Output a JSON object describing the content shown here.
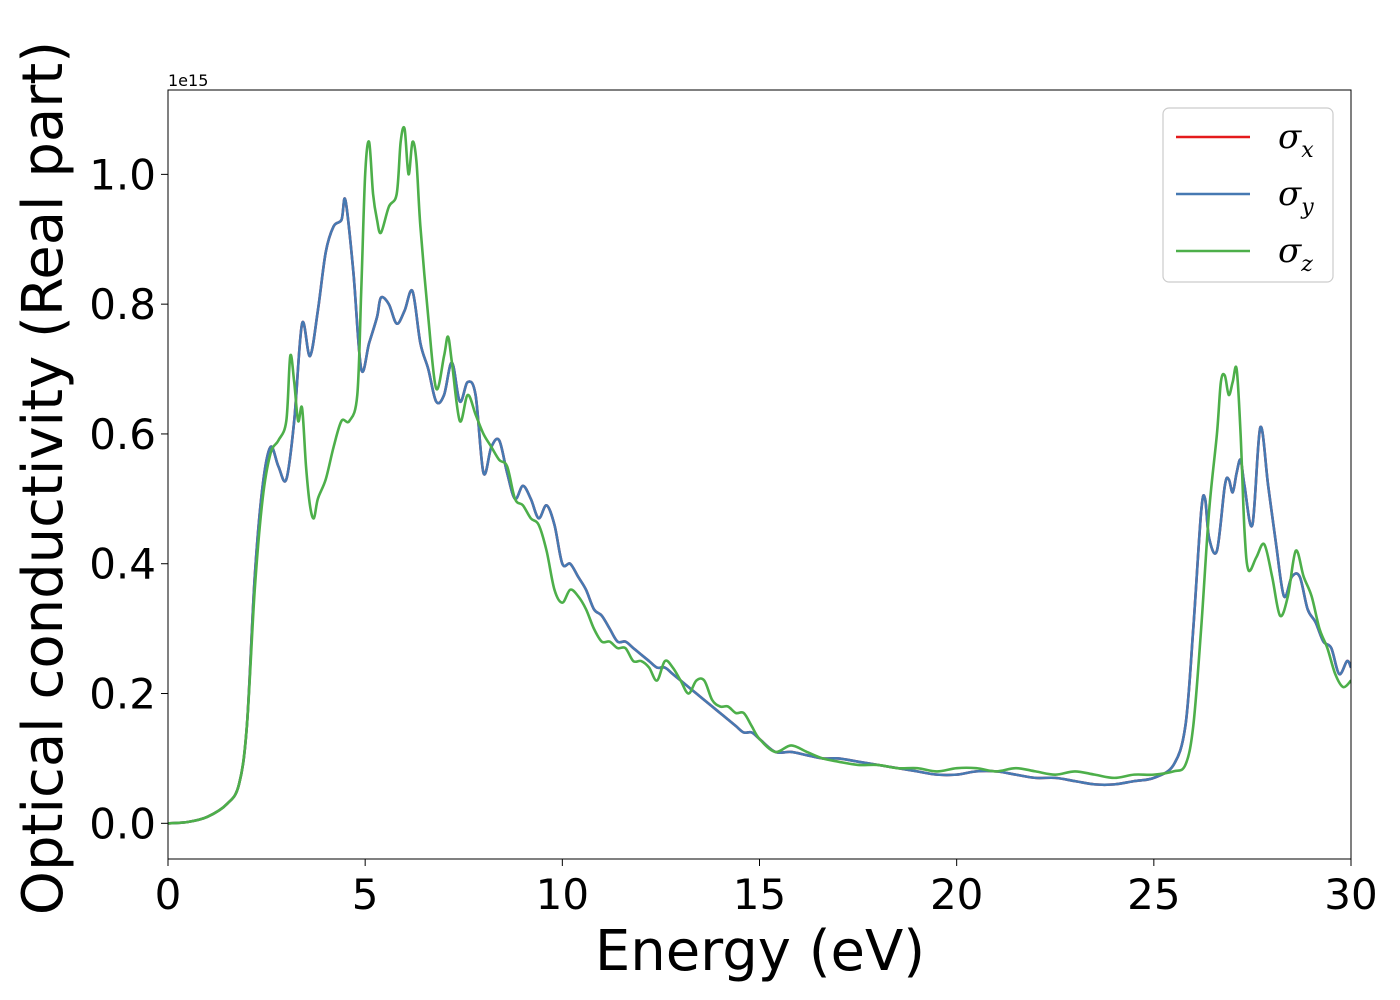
{
  "chart_data": {
    "type": "line",
    "title": "",
    "xlabel": "Energy (eV)",
    "ylabel": "Optical conductivity (Real part)",
    "y_offset_label": "1e15",
    "xlim": [
      0,
      30
    ],
    "ylim": [
      -0.055,
      1.13
    ],
    "xticks": [
      0,
      5,
      10,
      15,
      20,
      25,
      30
    ],
    "xtick_labels": [
      "0",
      "5",
      "10",
      "15",
      "20",
      "25",
      "30"
    ],
    "yticks": [
      0.0,
      0.2,
      0.4,
      0.6,
      0.8,
      1.0
    ],
    "ytick_labels": [
      "0.0",
      "0.2",
      "0.4",
      "0.6",
      "0.8",
      "1.0"
    ],
    "grid": false,
    "legend_position": "top-right",
    "series": [
      {
        "name": "σx",
        "legend_base": "σ",
        "legend_sub": "x",
        "color": "#e41a1c",
        "x": [
          0,
          0.5,
          1,
          1.5,
          1.8,
          2.0,
          2.2,
          2.4,
          2.6,
          2.8,
          3.0,
          3.2,
          3.4,
          3.6,
          3.8,
          4.0,
          4.2,
          4.4,
          4.5,
          4.7,
          4.9,
          5.1,
          5.3,
          5.4,
          5.6,
          5.8,
          6.0,
          6.2,
          6.4,
          6.6,
          6.8,
          7.0,
          7.2,
          7.4,
          7.6,
          7.8,
          8.0,
          8.2,
          8.4,
          8.6,
          8.8,
          9.0,
          9.2,
          9.4,
          9.6,
          9.8,
          10.0,
          10.2,
          10.4,
          10.6,
          10.8,
          11.0,
          11.2,
          11.4,
          11.6,
          11.8,
          12.0,
          12.2,
          12.4,
          12.6,
          12.8,
          13.0,
          13.4,
          13.8,
          14.0,
          14.2,
          14.4,
          14.6,
          14.8,
          15.0,
          15.4,
          15.8,
          16.2,
          16.6,
          17.0,
          17.5,
          18.0,
          18.5,
          19.0,
          19.5,
          20.0,
          20.5,
          21.0,
          21.5,
          22.0,
          22.5,
          23.0,
          23.5,
          24.0,
          24.5,
          25.0,
          25.5,
          25.8,
          26.0,
          26.2,
          26.3,
          26.4,
          26.6,
          26.8,
          26.9,
          27.0,
          27.1,
          27.2,
          27.3,
          27.5,
          27.7,
          27.9,
          28.1,
          28.3,
          28.5,
          28.7,
          28.9,
          29.1,
          29.3,
          29.5,
          29.7,
          29.9,
          30.0
        ],
        "y": [
          0.0,
          0.002,
          0.01,
          0.03,
          0.06,
          0.15,
          0.38,
          0.52,
          0.58,
          0.55,
          0.53,
          0.62,
          0.77,
          0.72,
          0.79,
          0.88,
          0.92,
          0.93,
          0.96,
          0.85,
          0.7,
          0.74,
          0.78,
          0.81,
          0.8,
          0.77,
          0.79,
          0.82,
          0.74,
          0.7,
          0.65,
          0.66,
          0.71,
          0.65,
          0.68,
          0.66,
          0.54,
          0.58,
          0.59,
          0.54,
          0.5,
          0.52,
          0.5,
          0.47,
          0.49,
          0.46,
          0.4,
          0.4,
          0.38,
          0.36,
          0.33,
          0.32,
          0.3,
          0.28,
          0.28,
          0.27,
          0.26,
          0.25,
          0.24,
          0.24,
          0.23,
          0.22,
          0.2,
          0.18,
          0.17,
          0.16,
          0.15,
          0.14,
          0.14,
          0.13,
          0.11,
          0.11,
          0.105,
          0.1,
          0.1,
          0.095,
          0.09,
          0.085,
          0.08,
          0.075,
          0.075,
          0.08,
          0.08,
          0.075,
          0.07,
          0.07,
          0.065,
          0.06,
          0.06,
          0.065,
          0.07,
          0.09,
          0.15,
          0.3,
          0.48,
          0.5,
          0.44,
          0.42,
          0.52,
          0.53,
          0.51,
          0.54,
          0.56,
          0.52,
          0.46,
          0.61,
          0.52,
          0.43,
          0.35,
          0.38,
          0.38,
          0.33,
          0.31,
          0.28,
          0.27,
          0.23,
          0.25,
          0.24
        ],
        "visible_note": "overlaps σy"
      },
      {
        "name": "σy",
        "legend_base": "σ",
        "legend_sub": "y",
        "color": "#4679b2",
        "x": [
          0,
          0.5,
          1,
          1.5,
          1.8,
          2.0,
          2.2,
          2.4,
          2.6,
          2.8,
          3.0,
          3.2,
          3.4,
          3.6,
          3.8,
          4.0,
          4.2,
          4.4,
          4.5,
          4.7,
          4.9,
          5.1,
          5.3,
          5.4,
          5.6,
          5.8,
          6.0,
          6.2,
          6.4,
          6.6,
          6.8,
          7.0,
          7.2,
          7.4,
          7.6,
          7.8,
          8.0,
          8.2,
          8.4,
          8.6,
          8.8,
          9.0,
          9.2,
          9.4,
          9.6,
          9.8,
          10.0,
          10.2,
          10.4,
          10.6,
          10.8,
          11.0,
          11.2,
          11.4,
          11.6,
          11.8,
          12.0,
          12.2,
          12.4,
          12.6,
          12.8,
          13.0,
          13.4,
          13.8,
          14.0,
          14.2,
          14.4,
          14.6,
          14.8,
          15.0,
          15.4,
          15.8,
          16.2,
          16.6,
          17.0,
          17.5,
          18.0,
          18.5,
          19.0,
          19.5,
          20.0,
          20.5,
          21.0,
          21.5,
          22.0,
          22.5,
          23.0,
          23.5,
          24.0,
          24.5,
          25.0,
          25.5,
          25.8,
          26.0,
          26.2,
          26.3,
          26.4,
          26.6,
          26.8,
          26.9,
          27.0,
          27.1,
          27.2,
          27.3,
          27.5,
          27.7,
          27.9,
          28.1,
          28.3,
          28.5,
          28.7,
          28.9,
          29.1,
          29.3,
          29.5,
          29.7,
          29.9,
          30.0
        ],
        "y": [
          0.0,
          0.002,
          0.01,
          0.03,
          0.06,
          0.15,
          0.38,
          0.52,
          0.58,
          0.55,
          0.53,
          0.62,
          0.77,
          0.72,
          0.79,
          0.88,
          0.92,
          0.93,
          0.96,
          0.85,
          0.7,
          0.74,
          0.78,
          0.81,
          0.8,
          0.77,
          0.79,
          0.82,
          0.74,
          0.7,
          0.65,
          0.66,
          0.71,
          0.65,
          0.68,
          0.66,
          0.54,
          0.58,
          0.59,
          0.54,
          0.5,
          0.52,
          0.5,
          0.47,
          0.49,
          0.46,
          0.4,
          0.4,
          0.38,
          0.36,
          0.33,
          0.32,
          0.3,
          0.28,
          0.28,
          0.27,
          0.26,
          0.25,
          0.24,
          0.24,
          0.23,
          0.22,
          0.2,
          0.18,
          0.17,
          0.16,
          0.15,
          0.14,
          0.14,
          0.13,
          0.11,
          0.11,
          0.105,
          0.1,
          0.1,
          0.095,
          0.09,
          0.085,
          0.08,
          0.075,
          0.075,
          0.08,
          0.08,
          0.075,
          0.07,
          0.07,
          0.065,
          0.06,
          0.06,
          0.065,
          0.07,
          0.09,
          0.15,
          0.3,
          0.48,
          0.5,
          0.44,
          0.42,
          0.52,
          0.53,
          0.51,
          0.54,
          0.56,
          0.52,
          0.46,
          0.61,
          0.52,
          0.43,
          0.35,
          0.38,
          0.38,
          0.33,
          0.31,
          0.28,
          0.27,
          0.23,
          0.25,
          0.24
        ]
      },
      {
        "name": "σz",
        "legend_base": "σ",
        "legend_sub": "z",
        "color": "#4daf4a",
        "x": [
          0,
          0.5,
          1,
          1.5,
          1.8,
          2.0,
          2.2,
          2.4,
          2.6,
          2.8,
          3.0,
          3.1,
          3.2,
          3.3,
          3.4,
          3.5,
          3.6,
          3.7,
          3.8,
          4.0,
          4.2,
          4.4,
          4.6,
          4.8,
          4.9,
          5.0,
          5.1,
          5.2,
          5.3,
          5.4,
          5.6,
          5.8,
          5.9,
          6.0,
          6.1,
          6.2,
          6.3,
          6.4,
          6.6,
          6.8,
          7.0,
          7.1,
          7.2,
          7.4,
          7.6,
          7.8,
          8.0,
          8.2,
          8.4,
          8.6,
          8.8,
          9.0,
          9.2,
          9.4,
          9.6,
          9.8,
          10.0,
          10.2,
          10.4,
          10.6,
          10.8,
          11.0,
          11.2,
          11.4,
          11.6,
          11.8,
          12.0,
          12.2,
          12.4,
          12.6,
          12.8,
          13.0,
          13.2,
          13.4,
          13.6,
          13.8,
          14.0,
          14.2,
          14.4,
          14.6,
          14.8,
          15.0,
          15.4,
          15.8,
          16.2,
          16.6,
          17.0,
          17.5,
          18.0,
          18.5,
          19.0,
          19.5,
          20.0,
          20.5,
          21.0,
          21.5,
          22.0,
          22.5,
          23.0,
          23.5,
          24.0,
          24.5,
          25.0,
          25.5,
          25.8,
          26.0,
          26.2,
          26.4,
          26.6,
          26.7,
          26.8,
          26.9,
          27.0,
          27.1,
          27.2,
          27.3,
          27.4,
          27.6,
          27.8,
          28.0,
          28.2,
          28.4,
          28.6,
          28.8,
          29.0,
          29.2,
          29.4,
          29.6,
          29.8,
          30.0
        ],
        "y": [
          0.0,
          0.002,
          0.01,
          0.03,
          0.06,
          0.15,
          0.36,
          0.5,
          0.57,
          0.59,
          0.62,
          0.72,
          0.68,
          0.62,
          0.64,
          0.55,
          0.49,
          0.47,
          0.5,
          0.53,
          0.58,
          0.62,
          0.62,
          0.66,
          0.82,
          1.0,
          1.05,
          0.97,
          0.93,
          0.91,
          0.95,
          0.97,
          1.05,
          1.07,
          1.0,
          1.05,
          1.02,
          0.92,
          0.78,
          0.67,
          0.72,
          0.75,
          0.71,
          0.62,
          0.66,
          0.63,
          0.6,
          0.58,
          0.56,
          0.55,
          0.5,
          0.49,
          0.47,
          0.46,
          0.42,
          0.36,
          0.34,
          0.36,
          0.35,
          0.33,
          0.3,
          0.28,
          0.28,
          0.27,
          0.27,
          0.25,
          0.25,
          0.24,
          0.22,
          0.25,
          0.24,
          0.22,
          0.2,
          0.22,
          0.22,
          0.19,
          0.18,
          0.18,
          0.17,
          0.17,
          0.15,
          0.13,
          0.11,
          0.12,
          0.11,
          0.1,
          0.095,
          0.09,
          0.09,
          0.085,
          0.085,
          0.08,
          0.085,
          0.085,
          0.08,
          0.085,
          0.08,
          0.075,
          0.08,
          0.075,
          0.07,
          0.075,
          0.075,
          0.08,
          0.09,
          0.15,
          0.3,
          0.48,
          0.6,
          0.68,
          0.69,
          0.66,
          0.68,
          0.7,
          0.6,
          0.45,
          0.39,
          0.41,
          0.43,
          0.38,
          0.32,
          0.35,
          0.42,
          0.38,
          0.35,
          0.3,
          0.27,
          0.23,
          0.21,
          0.22
        ]
      }
    ]
  }
}
